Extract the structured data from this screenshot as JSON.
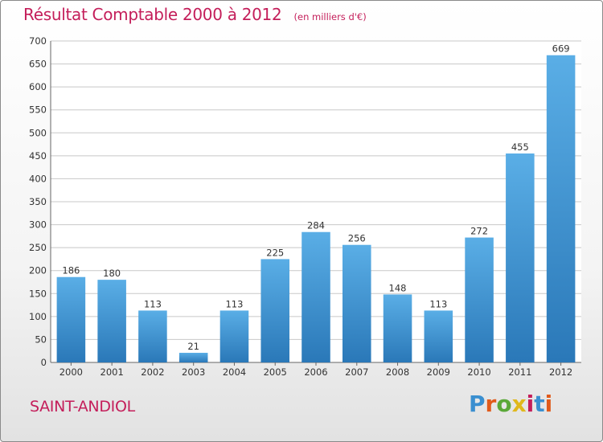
{
  "header": {
    "title": "Résultat Comptable 2000 à 2012",
    "subtitle": "(en milliers d'€)"
  },
  "footer": {
    "commune": "SAINT-ANDIOL",
    "logo": [
      "P",
      "r",
      "o",
      "x",
      "i",
      "t",
      "i"
    ],
    "logo_colors": [
      "#3a8fd0",
      "#e05a1a",
      "#5aa838",
      "#e0b81c",
      "#c41e5a",
      "#3a8fd0",
      "#e05a1a"
    ]
  },
  "colors": {
    "accent": "#c41e5a",
    "bar_top": "#5aaee6",
    "bar_bottom": "#2a78b8",
    "grid": "#c8c8c8"
  },
  "chart_data": {
    "type": "bar",
    "categories": [
      "2000",
      "2001",
      "2002",
      "2003",
      "2004",
      "2005",
      "2006",
      "2007",
      "2008",
      "2009",
      "2010",
      "2011",
      "2012"
    ],
    "values": [
      186,
      180,
      113,
      21,
      113,
      225,
      284,
      256,
      148,
      113,
      272,
      455,
      669
    ],
    "title": "Résultat Comptable 2000 à 2012",
    "subtitle": "(en milliers d'€)",
    "ylim": [
      0,
      700
    ],
    "yticks": [
      0,
      50,
      100,
      150,
      200,
      250,
      300,
      350,
      400,
      450,
      500,
      550,
      600,
      650,
      700
    ],
    "grid": true,
    "data_labels": true
  }
}
